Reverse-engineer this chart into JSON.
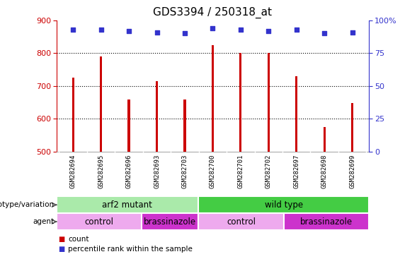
{
  "title": "GDS3394 / 250318_at",
  "samples": [
    "GSM282694",
    "GSM282695",
    "GSM282696",
    "GSM282693",
    "GSM282703",
    "GSM282700",
    "GSM282701",
    "GSM282702",
    "GSM282697",
    "GSM282698",
    "GSM282699"
  ],
  "counts": [
    725,
    790,
    660,
    715,
    660,
    825,
    800,
    800,
    730,
    575,
    648
  ],
  "percentile_ranks": [
    93,
    93,
    92,
    91,
    90,
    94,
    93,
    92,
    93,
    90,
    91
  ],
  "ylim_left": [
    500,
    900
  ],
  "ylim_right": [
    0,
    100
  ],
  "yticks_left": [
    500,
    600,
    700,
    800,
    900
  ],
  "yticks_right": [
    0,
    25,
    50,
    75,
    100
  ],
  "ytick_labels_right": [
    "0",
    "25",
    "50",
    "75",
    "100%"
  ],
  "bar_color": "#cc0000",
  "dot_color": "#3333cc",
  "genotype_groups": [
    {
      "label": "arf2 mutant",
      "start": 0,
      "end": 5,
      "color": "#aaeaaa"
    },
    {
      "label": "wild type",
      "start": 5,
      "end": 11,
      "color": "#44cc44"
    }
  ],
  "agent_groups": [
    {
      "label": "control",
      "start": 0,
      "end": 3,
      "color": "#eeaaee"
    },
    {
      "label": "brassinazole",
      "start": 3,
      "end": 5,
      "color": "#cc33cc"
    },
    {
      "label": "control",
      "start": 5,
      "end": 8,
      "color": "#eeaaee"
    },
    {
      "label": "brassinazole",
      "start": 8,
      "end": 11,
      "color": "#cc33cc"
    }
  ],
  "legend_items": [
    {
      "label": "count",
      "color": "#cc0000"
    },
    {
      "label": "percentile rank within the sample",
      "color": "#3333cc"
    }
  ],
  "left_axis_color": "#cc0000",
  "right_axis_color": "#3333cc",
  "title_fontsize": 11,
  "tick_fontsize": 8,
  "bar_width": 0.08
}
